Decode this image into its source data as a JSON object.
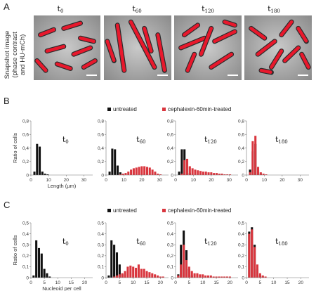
{
  "panels": {
    "A": "A",
    "B": "B",
    "C": "C"
  },
  "snapshot": {
    "ylabel_lines": [
      "Snapshot image",
      "(phase contrast",
      "and HU-mCh)"
    ],
    "times": [
      {
        "main": "t",
        "sub": "0"
      },
      {
        "main": "t",
        "sub": "60"
      },
      {
        "main": "t",
        "sub": "120"
      },
      {
        "main": "t",
        "sub": "180"
      }
    ]
  },
  "legend": {
    "untreated": "untreated",
    "treated": "cephalexin-60min-treated",
    "colors": {
      "untreated": "#111111",
      "treated": "#d9363e"
    }
  },
  "chart_data": [
    {
      "type": "bar",
      "panel": "B",
      "time": {
        "main": "t",
        "sub": "0"
      },
      "ylabel": "Ratio of cells",
      "xlabel": "Length (µm)",
      "xlim": [
        0,
        35
      ],
      "ylim": [
        0,
        0.8
      ],
      "bin_width": 1.2,
      "xticks": [
        "0",
        "10",
        "20",
        "30"
      ],
      "yticks": [
        "0",
        "0,2",
        "0,4",
        "0,6",
        "0,8"
      ],
      "series": [
        {
          "color": "#111111",
          "x": [
            2,
            3.5,
            5,
            6.5,
            8,
            9.5
          ],
          "values": [
            0.05,
            0.46,
            0.42,
            0.05,
            0.02,
            0.01
          ]
        }
      ]
    },
    {
      "type": "bar",
      "panel": "B",
      "time": {
        "main": "t",
        "sub": "60"
      },
      "xlim": [
        0,
        35
      ],
      "ylim": [
        0,
        0.8
      ],
      "bin_width": 1.2,
      "xticks": [
        "0",
        "10",
        "20",
        "30"
      ],
      "yticks": [
        "0",
        "0,2",
        "0,4",
        "0,6",
        "0,8"
      ],
      "series": [
        {
          "color": "#111111",
          "x": [
            2,
            3.5,
            5,
            6.5,
            8,
            9.5
          ],
          "values": [
            0.05,
            0.39,
            0.38,
            0.14,
            0.04,
            0.01
          ]
        },
        {
          "color": "#d9363e",
          "x": [
            8,
            9.5,
            11,
            12.5,
            14,
            15.5,
            17,
            18.5,
            20,
            21.5,
            23,
            24.5,
            26,
            27.5,
            29,
            30.5
          ],
          "values": [
            0.01,
            0.02,
            0.03,
            0.05,
            0.08,
            0.1,
            0.11,
            0.12,
            0.13,
            0.13,
            0.12,
            0.11,
            0.08,
            0.05,
            0.02,
            0.01
          ]
        }
      ]
    },
    {
      "type": "bar",
      "panel": "B",
      "time": {
        "main": "t",
        "sub": "120"
      },
      "xlim": [
        0,
        35
      ],
      "ylim": [
        0,
        0.8
      ],
      "bin_width": 1.2,
      "xticks": [
        "0",
        "10",
        "20",
        "30"
      ],
      "yticks": [
        "0",
        "0,2",
        "0,4",
        "0,6",
        "0,8"
      ],
      "series": [
        {
          "color": "#111111",
          "x": [
            2,
            3.5,
            5,
            6.5,
            8
          ],
          "values": [
            0.05,
            0.38,
            0.38,
            0.12,
            0.03
          ]
        },
        {
          "color": "#d9363e",
          "x": [
            3.5,
            5,
            6.5,
            8,
            9.5,
            11,
            12.5,
            14,
            15.5,
            17,
            18.5,
            20,
            21.5,
            23,
            24.5,
            26,
            27.5,
            29,
            30.5
          ],
          "values": [
            0.02,
            0.22,
            0.24,
            0.13,
            0.1,
            0.08,
            0.07,
            0.06,
            0.05,
            0.05,
            0.04,
            0.04,
            0.03,
            0.03,
            0.02,
            0.02,
            0.01,
            0.01,
            0.01
          ]
        }
      ]
    },
    {
      "type": "bar",
      "panel": "B",
      "time": {
        "main": "t",
        "sub": "180"
      },
      "xlim": [
        0,
        35
      ],
      "ylim": [
        0,
        0.8
      ],
      "bin_width": 1.2,
      "xticks": [
        "0",
        "10",
        "20",
        "30"
      ],
      "yticks": [
        "0",
        "0,2",
        "0,4",
        "0,6",
        "0,8"
      ],
      "series": [
        {
          "color": "#111111",
          "x": [
            2,
            3.5,
            5,
            6.5,
            8
          ],
          "values": [
            0.08,
            0.35,
            0.46,
            0.07,
            0.02
          ]
        },
        {
          "color": "#d9363e",
          "x": [
            2,
            3.5,
            5,
            6.5,
            8,
            9.5,
            11
          ],
          "values": [
            0.04,
            0.5,
            0.58,
            0.12,
            0.04,
            0.02,
            0.01
          ]
        }
      ]
    },
    {
      "type": "bar",
      "panel": "C",
      "time": {
        "main": "t",
        "sub": "0"
      },
      "ylabel": "Ratio of cells",
      "xlabel": "Nucleoid per cell",
      "xlim": [
        0,
        23
      ],
      "ylim": [
        0,
        0.5
      ],
      "bin_width": 0.8,
      "xticks": [
        "0",
        "5",
        "10",
        "15",
        "20"
      ],
      "yticks": [
        "0",
        "0,1",
        "0,2",
        "0,3",
        "0,4",
        "0,5"
      ],
      "series": [
        {
          "color": "#111111",
          "x": [
            1,
            2,
            3,
            4,
            5,
            6,
            7
          ],
          "values": [
            0.02,
            0.34,
            0.27,
            0.22,
            0.08,
            0.04,
            0.01
          ]
        }
      ]
    },
    {
      "type": "bar",
      "panel": "C",
      "time": {
        "main": "t",
        "sub": "60"
      },
      "xlim": [
        0,
        23
      ],
      "ylim": [
        0,
        0.5
      ],
      "bin_width": 0.8,
      "xticks": [
        "0",
        "5",
        "10",
        "15",
        "20"
      ],
      "yticks": [
        "0",
        "0,1",
        "0,2",
        "0,3",
        "0,4",
        "0,5"
      ],
      "series": [
        {
          "color": "#111111",
          "x": [
            1,
            2,
            3,
            4,
            5,
            6
          ],
          "values": [
            0.02,
            0.34,
            0.3,
            0.23,
            0.12,
            0.03
          ]
        },
        {
          "color": "#d9363e",
          "x": [
            3,
            4,
            5,
            6,
            7,
            8,
            9,
            10,
            11,
            12,
            13,
            14,
            15,
            16,
            17,
            18,
            19,
            20,
            21
          ],
          "values": [
            0.01,
            0.02,
            0.03,
            0.04,
            0.06,
            0.1,
            0.11,
            0.1,
            0.09,
            0.12,
            0.08,
            0.08,
            0.06,
            0.05,
            0.04,
            0.03,
            0.02,
            0.01,
            0.01
          ]
        }
      ]
    },
    {
      "type": "bar",
      "panel": "C",
      "time": {
        "main": "t",
        "sub": "120"
      },
      "xlim": [
        0,
        23
      ],
      "ylim": [
        0,
        0.5
      ],
      "bin_width": 0.8,
      "xticks": [
        "0",
        "5",
        "10",
        "15",
        "20"
      ],
      "yticks": [
        "0",
        "0,1",
        "0,2",
        "0,3",
        "0,4",
        "0,5"
      ],
      "series": [
        {
          "color": "#111111",
          "x": [
            1,
            2,
            3,
            4,
            5,
            6
          ],
          "values": [
            0.03,
            0.3,
            0.43,
            0.25,
            0.08,
            0.02
          ]
        },
        {
          "color": "#d9363e",
          "x": [
            1,
            2,
            3,
            4,
            5,
            6,
            7,
            8,
            9,
            10,
            11,
            12,
            13,
            14,
            15,
            16,
            17,
            18,
            19,
            20
          ],
          "values": [
            0.02,
            0.12,
            0.3,
            0.16,
            0.1,
            0.06,
            0.04,
            0.04,
            0.03,
            0.03,
            0.02,
            0.02,
            0.02,
            0.01,
            0.01,
            0.01,
            0.01,
            0.01,
            0.01,
            0.01
          ]
        }
      ]
    },
    {
      "type": "bar",
      "panel": "C",
      "time": {
        "main": "t",
        "sub": "180"
      },
      "xlim": [
        0,
        23
      ],
      "ylim": [
        0,
        0.5
      ],
      "bin_width": 0.8,
      "xticks": [
        "0",
        "5",
        "10",
        "15",
        "20"
      ],
      "yticks": [
        "0",
        "0,1",
        "0,2",
        "0,3",
        "0,4",
        "0,5"
      ],
      "series": [
        {
          "color": "#111111",
          "x": [
            1,
            2,
            3,
            4,
            5,
            6
          ],
          "values": [
            0.42,
            0.46,
            0.3,
            0.08,
            0.02,
            0.01
          ]
        },
        {
          "color": "#d9363e",
          "x": [
            1,
            2,
            3,
            4,
            5,
            6,
            7
          ],
          "values": [
            0.4,
            0.44,
            0.28,
            0.12,
            0.04,
            0.02,
            0.01
          ]
        }
      ]
    }
  ]
}
